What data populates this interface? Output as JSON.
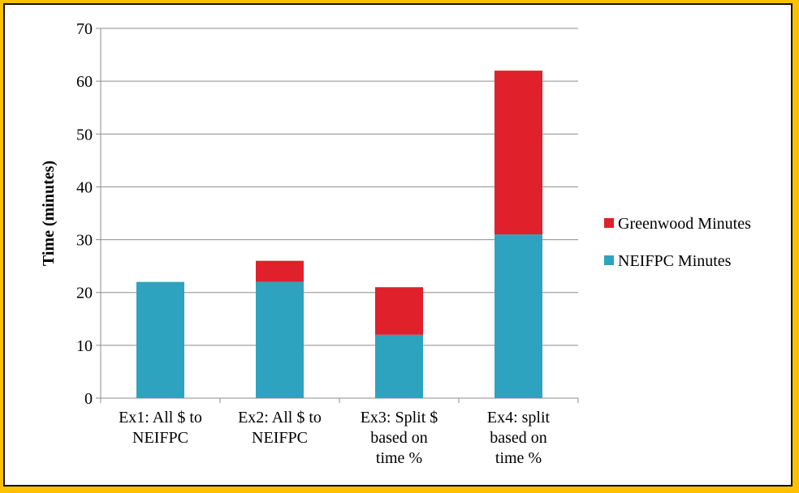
{
  "chart_data": {
    "type": "bar",
    "stacked": true,
    "ylabel": "Time (minutes)",
    "ylim": [
      0,
      70
    ],
    "yticks": [
      0,
      10,
      20,
      30,
      40,
      50,
      60,
      70
    ],
    "grid": true,
    "legend_position": "right",
    "categories": [
      [
        "Ex1: All $ to",
        "NEIFPC"
      ],
      [
        "Ex2: All $ to",
        "NEIFPC"
      ],
      [
        "Ex3: Split $",
        "based on",
        "time %"
      ],
      [
        "Ex4: split",
        "based on",
        "time %"
      ]
    ],
    "series": [
      {
        "name": "NEIFPC Minutes",
        "color": "#2EA3BF",
        "values": [
          22,
          22,
          12,
          31
        ]
      },
      {
        "name": "Greenwood Minutes",
        "color": "#E0202A",
        "values": [
          0,
          4,
          9,
          31
        ]
      }
    ]
  }
}
